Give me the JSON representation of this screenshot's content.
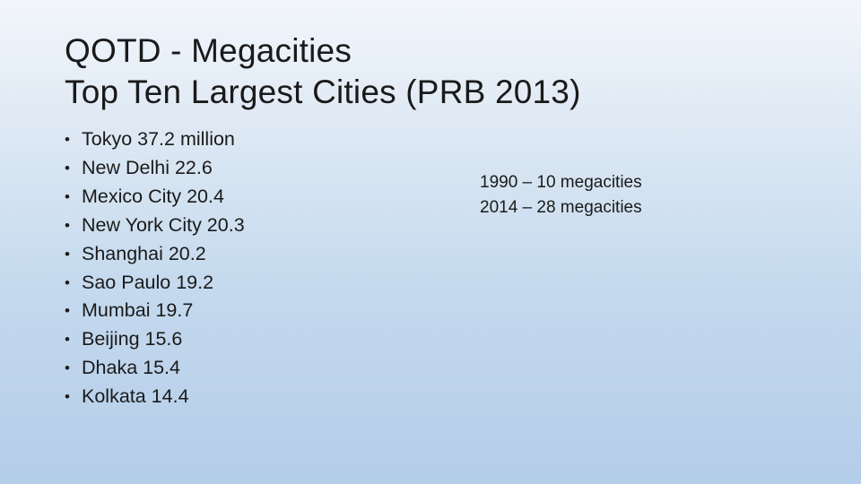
{
  "slide": {
    "title_line1": "QOTD - Megacities",
    "title_line2": "Top Ten Largest Cities (PRB 2013)",
    "cities": [
      "Tokyo 37.2 million",
      "New Delhi 22.6",
      "Mexico City 20.4",
      "New York City 20.3",
      "Shanghai 20.2",
      "Sao Paulo 19.2",
      "Mumbai 19.7",
      "Beijing 15.6",
      "Dhaka 15.4",
      "Kolkata 14.4"
    ],
    "bullet_char": "•",
    "stats": [
      "1990 – 10 megacities",
      "2014 – 28 megacities"
    ]
  }
}
